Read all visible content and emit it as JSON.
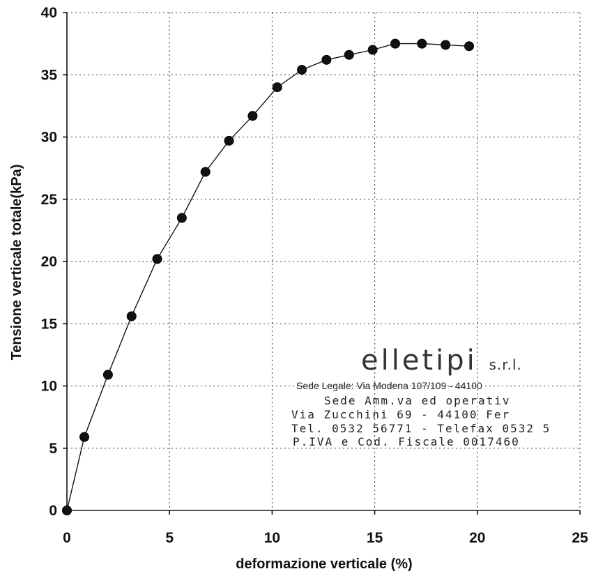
{
  "chart_data": {
    "type": "line",
    "title": "",
    "xlabel": "deformazione verticale (%)",
    "ylabel": "Tensione verticale totale(kPa)",
    "xlim": [
      0,
      25
    ],
    "ylim": [
      0,
      40
    ],
    "xticks": [
      0,
      5,
      10,
      15,
      20,
      25
    ],
    "yticks": [
      0,
      5,
      10,
      15,
      20,
      25,
      30,
      35,
      40
    ],
    "grid": true,
    "legend": "none",
    "series": [
      {
        "x": [
          0,
          0.85,
          2.0,
          3.15,
          4.4,
          5.6,
          6.75,
          7.9,
          9.05,
          10.25,
          11.45,
          12.65,
          13.75,
          14.9,
          16.0,
          17.3,
          18.45,
          19.6
        ],
        "y": [
          0,
          5.9,
          10.9,
          15.6,
          20.2,
          23.5,
          27.2,
          29.7,
          31.7,
          34.0,
          35.4,
          36.2,
          36.6,
          37.0,
          37.5,
          37.5,
          37.4,
          37.3
        ]
      }
    ]
  },
  "stamp": {
    "brand": "elletipi",
    "brand_suffix": "s.r.l.",
    "lines": [
      "Sede Legale: Via Modena 107/109 - 44100",
      "Sede Amm.va ed operativ",
      "Via Zucchini 69 - 44100 Fer",
      "Tel. 0532 56771 - Telefax 0532 5",
      "P.IVA e Cod. Fiscale 0017460"
    ]
  }
}
